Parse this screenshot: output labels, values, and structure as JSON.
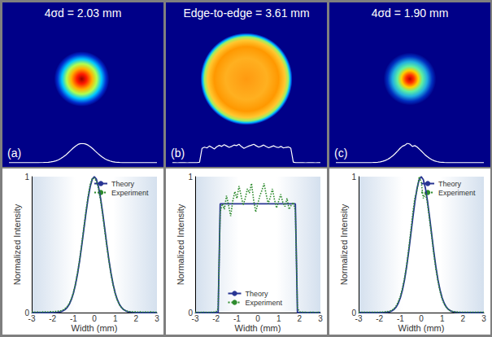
{
  "chart_data": [
    {
      "type": "line",
      "title": "4σd = 2.03 mm",
      "panel": "(a)",
      "xlabel": "Width (mm)",
      "ylabel": "Normalized Intensity",
      "xlim": [
        -3,
        3
      ],
      "xticks": [
        -3,
        -2,
        -1,
        0,
        1,
        2,
        3
      ],
      "ylim": [
        0,
        1
      ],
      "yticks": [
        0,
        1
      ],
      "grid": false,
      "legend": "upper right",
      "x": [
        -3,
        -2.9,
        -2.8,
        -2.7,
        -2.6,
        -2.5,
        -2.4,
        -2.3,
        -2.2,
        -2.1,
        -2,
        -1.9,
        -1.8,
        -1.7,
        -1.6,
        -1.5,
        -1.4,
        -1.3,
        -1.2,
        -1.1,
        -1,
        -0.9,
        -0.8,
        -0.7,
        -0.6,
        -0.5,
        -0.4,
        -0.3,
        -0.2,
        -0.1,
        0,
        0.1,
        0.2,
        0.3,
        0.4,
        0.5,
        0.6,
        0.7,
        0.8,
        0.9,
        1,
        1.1,
        1.2,
        1.3,
        1.4,
        1.5,
        1.6,
        1.7,
        1.8,
        1.9,
        2,
        2.1,
        2.2,
        2.3,
        2.4,
        2.5,
        2.6,
        2.7,
        2.8,
        2.9,
        3
      ],
      "series": [
        {
          "name": "Theory",
          "color": "#283593",
          "line_style": "solid",
          "values": [
            0,
            0,
            0,
            0,
            0,
            0,
            0,
            0,
            0,
            0,
            0,
            0.001,
            0.002,
            0.004,
            0.007,
            0.013,
            0.022,
            0.038,
            0.061,
            0.096,
            0.144,
            0.208,
            0.289,
            0.386,
            0.497,
            0.616,
            0.733,
            0.84,
            0.925,
            0.981,
            1,
            0.981,
            0.925,
            0.84,
            0.733,
            0.616,
            0.497,
            0.386,
            0.289,
            0.208,
            0.144,
            0.096,
            0.061,
            0.038,
            0.022,
            0.013,
            0.007,
            0.004,
            0.002,
            0.001,
            0,
            0,
            0,
            0,
            0,
            0,
            0,
            0,
            0,
            0,
            0
          ]
        },
        {
          "name": "Experiment",
          "color": "#2e8b2e",
          "line_style": "dotted",
          "values": [
            0.003,
            0.004,
            0.002,
            0.005,
            0.003,
            0.004,
            0.006,
            0.004,
            0.005,
            0.007,
            0.006,
            0.008,
            0.009,
            0.011,
            0.014,
            0.02,
            0.03,
            0.045,
            0.068,
            0.1,
            0.148,
            0.215,
            0.298,
            0.392,
            0.51,
            0.628,
            0.748,
            0.855,
            0.94,
            0.985,
            0.99,
            0.965,
            0.91,
            0.825,
            0.72,
            0.6,
            0.485,
            0.378,
            0.28,
            0.2,
            0.138,
            0.092,
            0.058,
            0.036,
            0.022,
            0.014,
            0.009,
            0.007,
            0.006,
            0.005,
            0.005,
            0.004,
            0.006,
            0.003,
            0.005,
            0.004,
            0.003,
            0.005,
            0.004,
            0.002,
            0.003
          ]
        }
      ]
    },
    {
      "type": "line",
      "title": "Edge-to-edge = 3.61 mm",
      "panel": "(b)",
      "xlabel": "Width (mm)",
      "ylabel": "Normalized Intensity",
      "xlim": [
        -3,
        3
      ],
      "xticks": [
        -3,
        -2,
        -1,
        0,
        1,
        2,
        3
      ],
      "ylim": [
        0,
        1
      ],
      "yticks": [
        0,
        1
      ],
      "grid": false,
      "legend": "lower center",
      "x": [
        -3,
        -2.9,
        -2.8,
        -2.7,
        -2.6,
        -2.5,
        -2.4,
        -2.3,
        -2.2,
        -2.1,
        -2,
        -1.9,
        -1.8,
        -1.7,
        -1.6,
        -1.5,
        -1.4,
        -1.3,
        -1.2,
        -1.1,
        -1,
        -0.9,
        -0.8,
        -0.7,
        -0.6,
        -0.5,
        -0.4,
        -0.3,
        -0.2,
        -0.1,
        0,
        0.1,
        0.2,
        0.3,
        0.4,
        0.5,
        0.6,
        0.7,
        0.8,
        0.9,
        1,
        1.1,
        1.2,
        1.3,
        1.4,
        1.5,
        1.6,
        1.7,
        1.8,
        1.9,
        2,
        2.1,
        2.2,
        2.3,
        2.4,
        2.5,
        2.6,
        2.7,
        2.8,
        2.9,
        3
      ],
      "series": [
        {
          "name": "Theory",
          "color": "#283593",
          "line_style": "solid",
          "values": [
            0,
            0,
            0,
            0,
            0,
            0,
            0,
            0,
            0,
            0,
            0,
            0,
            0.8,
            0.8,
            0.8,
            0.8,
            0.8,
            0.8,
            0.8,
            0.8,
            0.8,
            0.8,
            0.8,
            0.8,
            0.8,
            0.8,
            0.8,
            0.8,
            0.8,
            0.8,
            0.8,
            0.8,
            0.8,
            0.8,
            0.8,
            0.8,
            0.8,
            0.8,
            0.8,
            0.8,
            0.8,
            0.8,
            0.8,
            0.8,
            0.8,
            0.8,
            0.8,
            0.8,
            0.8,
            0,
            0,
            0,
            0,
            0,
            0,
            0,
            0,
            0,
            0,
            0,
            0
          ]
        },
        {
          "name": "Experiment",
          "color": "#2e8b2e",
          "line_style": "dotted",
          "values": [
            0.002,
            0.003,
            0.001,
            0.002,
            0.003,
            0.002,
            0.001,
            0.003,
            0.002,
            0.004,
            0.006,
            0.03,
            0.74,
            0.8,
            0.76,
            0.86,
            0.79,
            0.71,
            0.82,
            0.89,
            0.84,
            0.93,
            0.86,
            0.79,
            0.84,
            0.91,
            0.88,
            0.95,
            0.83,
            0.74,
            0.8,
            0.86,
            0.9,
            0.95,
            0.87,
            0.8,
            0.85,
            0.91,
            0.83,
            0.77,
            0.82,
            0.87,
            0.81,
            0.78,
            0.84,
            0.76,
            0.79,
            0.81,
            0.75,
            0.035,
            0.006,
            0.004,
            0.002,
            0.003,
            0.001,
            0.002,
            0.003,
            0.002,
            0.001,
            0.002,
            0.003
          ]
        }
      ]
    },
    {
      "type": "line",
      "title": "4σd = 1.90 mm",
      "panel": "(c)",
      "xlabel": "Width (mm)",
      "ylabel": "Normalized Intensity",
      "xlim": [
        -3,
        3
      ],
      "xticks": [
        -3,
        -2,
        -1,
        0,
        1,
        2,
        3
      ],
      "ylim": [
        0,
        1
      ],
      "yticks": [
        0,
        1
      ],
      "grid": false,
      "legend": "upper right",
      "x": [
        -3,
        -2.9,
        -2.8,
        -2.7,
        -2.6,
        -2.5,
        -2.4,
        -2.3,
        -2.2,
        -2.1,
        -2,
        -1.9,
        -1.8,
        -1.7,
        -1.6,
        -1.5,
        -1.4,
        -1.3,
        -1.2,
        -1.1,
        -1,
        -0.9,
        -0.8,
        -0.7,
        -0.6,
        -0.5,
        -0.4,
        -0.3,
        -0.2,
        -0.1,
        0,
        0.1,
        0.2,
        0.3,
        0.4,
        0.5,
        0.6,
        0.7,
        0.8,
        0.9,
        1,
        1.1,
        1.2,
        1.3,
        1.4,
        1.5,
        1.6,
        1.7,
        1.8,
        1.9,
        2,
        2.1,
        2.2,
        2.3,
        2.4,
        2.5,
        2.6,
        2.7,
        2.8,
        2.9,
        3
      ],
      "series": [
        {
          "name": "Theory",
          "color": "#283593",
          "line_style": "solid",
          "values": [
            0,
            0,
            0,
            0,
            0,
            0,
            0,
            0,
            0,
            0,
            0,
            0,
            0.001,
            0.002,
            0.003,
            0.007,
            0.013,
            0.024,
            0.041,
            0.069,
            0.109,
            0.166,
            0.242,
            0.338,
            0.45,
            0.575,
            0.701,
            0.819,
            0.915,
            0.978,
            1,
            0.978,
            0.915,
            0.819,
            0.701,
            0.575,
            0.45,
            0.338,
            0.242,
            0.166,
            0.109,
            0.069,
            0.041,
            0.024,
            0.013,
            0.007,
            0.003,
            0.002,
            0.001,
            0,
            0,
            0,
            0,
            0,
            0,
            0,
            0,
            0,
            0,
            0,
            0
          ]
        },
        {
          "name": "Experiment",
          "color": "#2e8b2e",
          "line_style": "dotted",
          "values": [
            0.002,
            0.003,
            0.002,
            0.003,
            0.002,
            0.003,
            0.003,
            0.002,
            0.003,
            0.003,
            0.003,
            0.004,
            0.005,
            0.006,
            0.008,
            0.012,
            0.018,
            0.03,
            0.05,
            0.08,
            0.12,
            0.18,
            0.255,
            0.35,
            0.47,
            0.6,
            0.74,
            0.85,
            0.9,
            1,
            0.96,
            0.84,
            0.88,
            0.8,
            0.68,
            0.56,
            0.43,
            0.32,
            0.23,
            0.155,
            0.1,
            0.062,
            0.038,
            0.022,
            0.013,
            0.008,
            0.006,
            0.004,
            0.004,
            0.003,
            0.003,
            0.003,
            0.002,
            0.003,
            0.002,
            0.003,
            0.002,
            0.003,
            0.002,
            0.003,
            0.002
          ]
        }
      ]
    }
  ]
}
